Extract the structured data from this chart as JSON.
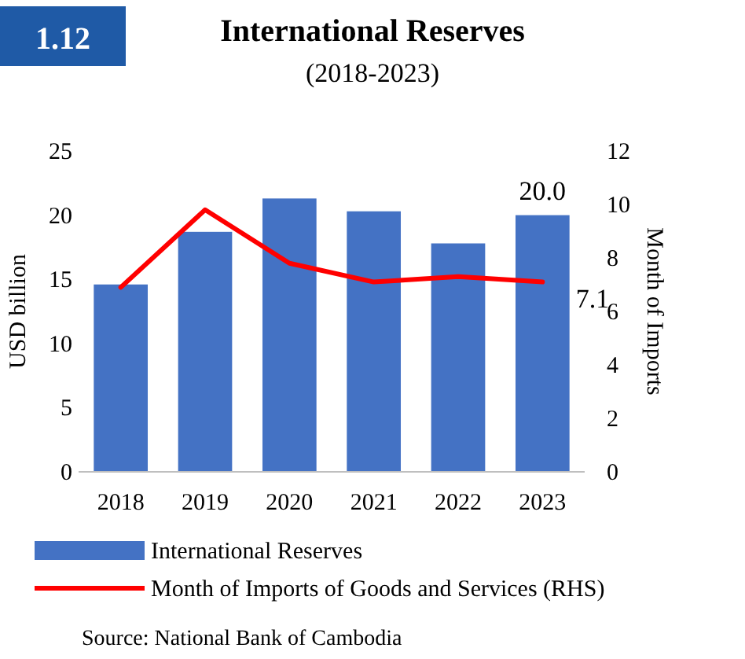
{
  "chart_data": {
    "type": "bar",
    "title": "International Reserves",
    "subtitle": "(2018-2023)",
    "ylabel": "USD billion",
    "y2label": "Month of Imports",
    "annotations": [
      "1.12",
      "Source: National Bank of Cambodia"
    ],
    "categories": [
      "2018",
      "2019",
      "2020",
      "2021",
      "2022",
      "2023"
    ],
    "series": [
      {
        "name": "International Reserves",
        "color": "#4472c4",
        "values": [
          14.6,
          18.7,
          21.3,
          20.3,
          17.8,
          20.0
        ],
        "value_labels": [
          null,
          null,
          null,
          null,
          null,
          "20.0"
        ]
      },
      {
        "name": "Month of Imports of Goods and Services (RHS)",
        "type": "line",
        "axis": "y2",
        "color": "#ff0000",
        "values": [
          6.9,
          9.8,
          7.8,
          7.1,
          7.3,
          7.1
        ],
        "value_labels": [
          null,
          null,
          null,
          null,
          null,
          "7.1"
        ]
      }
    ],
    "ylim": [
      0,
      25
    ],
    "yticks": [
      0,
      5,
      10,
      15,
      20,
      25
    ],
    "y2lim": [
      0,
      12
    ],
    "y2ticks": [
      0,
      2,
      4,
      6,
      8,
      10,
      12
    ],
    "grid": false,
    "legend": "bottom",
    "marker": "none",
    "line_style": "solid"
  }
}
